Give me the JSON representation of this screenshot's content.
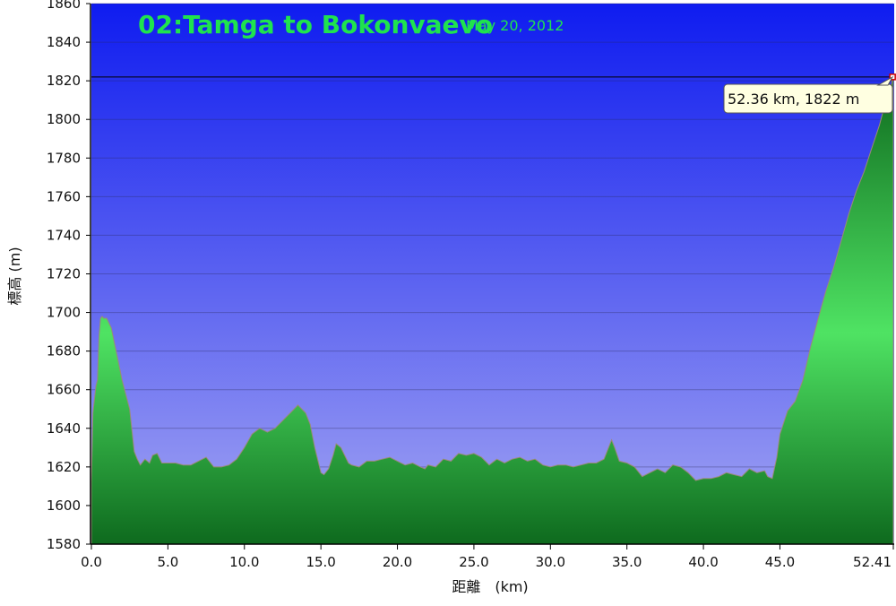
{
  "chart_data": {
    "type": "area",
    "title": "02:Tamga to Bokonvaevo",
    "subtitle": "May 20, 2012",
    "xlabel": "距離　(km)",
    "ylabel": "標高 (m)",
    "xlim": [
      0,
      52.41
    ],
    "ylim": [
      1580,
      1860
    ],
    "x_ticks": [
      0.0,
      5.0,
      10.0,
      15.0,
      20.0,
      25.0,
      30.0,
      35.0,
      40.0,
      45.0,
      52.41
    ],
    "x_tick_labels": [
      "0.0",
      "5.0",
      "10.0",
      "15.0",
      "20.0",
      "25.0",
      "30.0",
      "35.0",
      "40.0",
      "45.0",
      "52.41"
    ],
    "y_ticks": [
      1580,
      1600,
      1620,
      1640,
      1660,
      1680,
      1700,
      1720,
      1740,
      1760,
      1780,
      1800,
      1820,
      1840,
      1860
    ],
    "grid": true,
    "series": [
      {
        "x": [
          0.0,
          0.1,
          0.2,
          0.3,
          0.4,
          0.5,
          0.6,
          0.7,
          0.8,
          1.0,
          1.3,
          1.7,
          2.0,
          2.5,
          2.8,
          3.0,
          3.2,
          3.5,
          3.8,
          4.0,
          4.3,
          4.6,
          5.0,
          5.5,
          6.0,
          6.5,
          7.0,
          7.5,
          8.0,
          8.5,
          9.0,
          9.5,
          10.0,
          10.5,
          11.0,
          11.5,
          12.0,
          12.5,
          13.0,
          13.5,
          14.0,
          14.3,
          14.6,
          15.0,
          15.2,
          15.5,
          15.8,
          16.0,
          16.3,
          16.8,
          17.0,
          17.5,
          18.0,
          18.5,
          19.0,
          19.5,
          20.0,
          20.5,
          21.0,
          21.5,
          21.8,
          22.0,
          22.5,
          23.0,
          23.5,
          24.0,
          24.5,
          25.0,
          25.5,
          26.0,
          26.5,
          27.0,
          27.5,
          28.0,
          28.5,
          29.0,
          29.5,
          30.0,
          30.5,
          31.0,
          31.5,
          32.0,
          32.5,
          33.0,
          33.5,
          34.0,
          34.2,
          34.5,
          35.0,
          35.5,
          36.0,
          36.5,
          37.0,
          37.5,
          38.0,
          38.5,
          39.0,
          39.5,
          40.0,
          40.5,
          41.0,
          41.5,
          42.0,
          42.5,
          43.0,
          43.5,
          44.0,
          44.2,
          44.5,
          44.8,
          45.0,
          45.5,
          46.0,
          46.5,
          47.0,
          47.5,
          48.0,
          48.5,
          49.0,
          49.5,
          50.0,
          50.5,
          51.0,
          51.5,
          51.8,
          52.0,
          52.2,
          52.36,
          52.41
        ],
        "y": [
          1612,
          1648,
          1655,
          1662,
          1665,
          1688,
          1697,
          1698,
          1697,
          1697,
          1692,
          1677,
          1665,
          1650,
          1628,
          1624,
          1621,
          1624,
          1622,
          1626,
          1627,
          1622,
          1622,
          1622,
          1621,
          1621,
          1623,
          1625,
          1620,
          1620,
          1621,
          1624,
          1630,
          1637,
          1640,
          1638,
          1640,
          1644,
          1648,
          1652,
          1648,
          1642,
          1630,
          1617,
          1616,
          1619,
          1626,
          1632,
          1630,
          1622,
          1621,
          1620,
          1623,
          1623,
          1624,
          1625,
          1623,
          1621,
          1622,
          1620,
          1619,
          1621,
          1620,
          1624,
          1623,
          1627,
          1626,
          1627,
          1625,
          1621,
          1624,
          1622,
          1624,
          1625,
          1623,
          1624,
          1621,
          1620,
          1621,
          1621,
          1620,
          1621,
          1622,
          1622,
          1624,
          1634,
          1630,
          1623,
          1622,
          1620,
          1615,
          1617,
          1619,
          1617,
          1621,
          1620,
          1617,
          1613,
          1614,
          1614,
          1615,
          1617,
          1616,
          1615,
          1619,
          1617,
          1618,
          1615,
          1614,
          1625,
          1637,
          1649,
          1654,
          1665,
          1682,
          1697,
          1711,
          1723,
          1737,
          1751,
          1763,
          1773,
          1785,
          1797,
          1806,
          1808,
          1812,
          1822,
          1823
        ]
      }
    ],
    "marker": {
      "x": 52.36,
      "y": 1822,
      "label": "52.36 km, 1822 m"
    },
    "colors": {
      "sky_top": "#0f1cf0",
      "sky_bottom": "#a4a6f2",
      "area_dark": "#0e6a1e",
      "area_light": "#4fe363",
      "area_outline": "#9a8a78",
      "title": "#1fe34e",
      "tooltip_bg": "#ffffe1"
    }
  }
}
